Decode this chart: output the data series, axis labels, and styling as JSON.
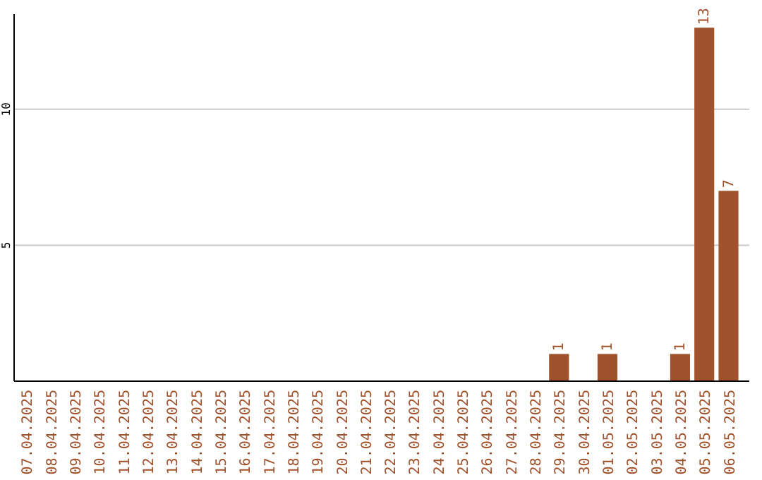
{
  "chart_data": {
    "type": "bar",
    "categories": [
      "07.04.2025",
      "08.04.2025",
      "09.04.2025",
      "10.04.2025",
      "11.04.2025",
      "12.04.2025",
      "13.04.2025",
      "14.04.2025",
      "15.04.2025",
      "16.04.2025",
      "17.04.2025",
      "18.04.2025",
      "19.04.2025",
      "20.04.2025",
      "21.04.2025",
      "22.04.2025",
      "23.04.2025",
      "24.04.2025",
      "25.04.2025",
      "26.04.2025",
      "27.04.2025",
      "28.04.2025",
      "29.04.2025",
      "30.04.2025",
      "01.05.2025",
      "02.05.2025",
      "03.05.2025",
      "04.05.2025",
      "05.05.2025",
      "06.05.2025"
    ],
    "values": [
      0,
      0,
      0,
      0,
      0,
      0,
      0,
      0,
      0,
      0,
      0,
      0,
      0,
      0,
      0,
      0,
      0,
      0,
      0,
      0,
      0,
      0,
      1,
      0,
      1,
      0,
      0,
      1,
      13,
      7
    ],
    "value_labels": [
      null,
      null,
      null,
      null,
      null,
      null,
      null,
      null,
      null,
      null,
      null,
      null,
      null,
      null,
      null,
      null,
      null,
      null,
      null,
      null,
      null,
      null,
      "1",
      null,
      "1",
      null,
      null,
      "1",
      "13",
      "7"
    ],
    "color": "#a0522d",
    "ylim": [
      0,
      13.5
    ],
    "yticks": [
      5,
      10
    ],
    "grid": "y"
  }
}
